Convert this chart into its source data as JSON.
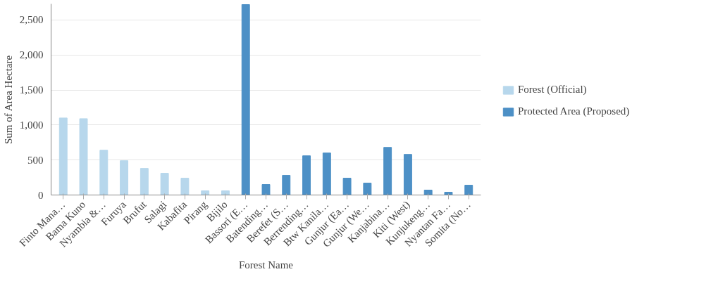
{
  "chart_data": {
    "type": "bar",
    "xlabel": "Forest Name",
    "ylabel": "Sum of Area Hectare",
    "categories": [
      "Finto Mana…",
      "Bama Kuno",
      "Nyambia &…",
      "Furuya",
      "Brufut",
      "Salagi",
      "Kabafita",
      "Pirang",
      "Bijilo",
      "Bassori (E…",
      "Batending…",
      "Berefet (S…",
      "Berrending…",
      "Btw Kanila…",
      "Gunjur (Ea…",
      "Gunjur (We…",
      "Kanjabina…",
      "Kiti (West)",
      "Kunjukeng…",
      "Nyantan Fa…",
      "Somita (No…"
    ],
    "series": [
      {
        "name": "Forest (Official)",
        "color": "#b7d7ec",
        "values": [
          1100,
          1090,
          640,
          490,
          380,
          310,
          240,
          60,
          60,
          null,
          null,
          null,
          null,
          null,
          null,
          null,
          null,
          null,
          null,
          null,
          null
        ]
      },
      {
        "name": "Protected Area (Proposed)",
        "color": "#4d90c6",
        "values": [
          null,
          null,
          null,
          null,
          null,
          null,
          null,
          null,
          null,
          2720,
          150,
          280,
          560,
          600,
          240,
          170,
          680,
          580,
          70,
          40,
          140
        ]
      }
    ],
    "ylim": [
      0,
      2730
    ],
    "yticks": [
      0,
      {
        "value": 500,
        "label": "500"
      },
      {
        "value": 1000,
        "label": "1,000"
      },
      {
        "value": 1500,
        "label": "1,500"
      },
      {
        "value": 2000,
        "label": "2,000"
      },
      {
        "value": 2500,
        "label": "2,500"
      }
    ],
    "grid": "y",
    "legend": "right"
  }
}
